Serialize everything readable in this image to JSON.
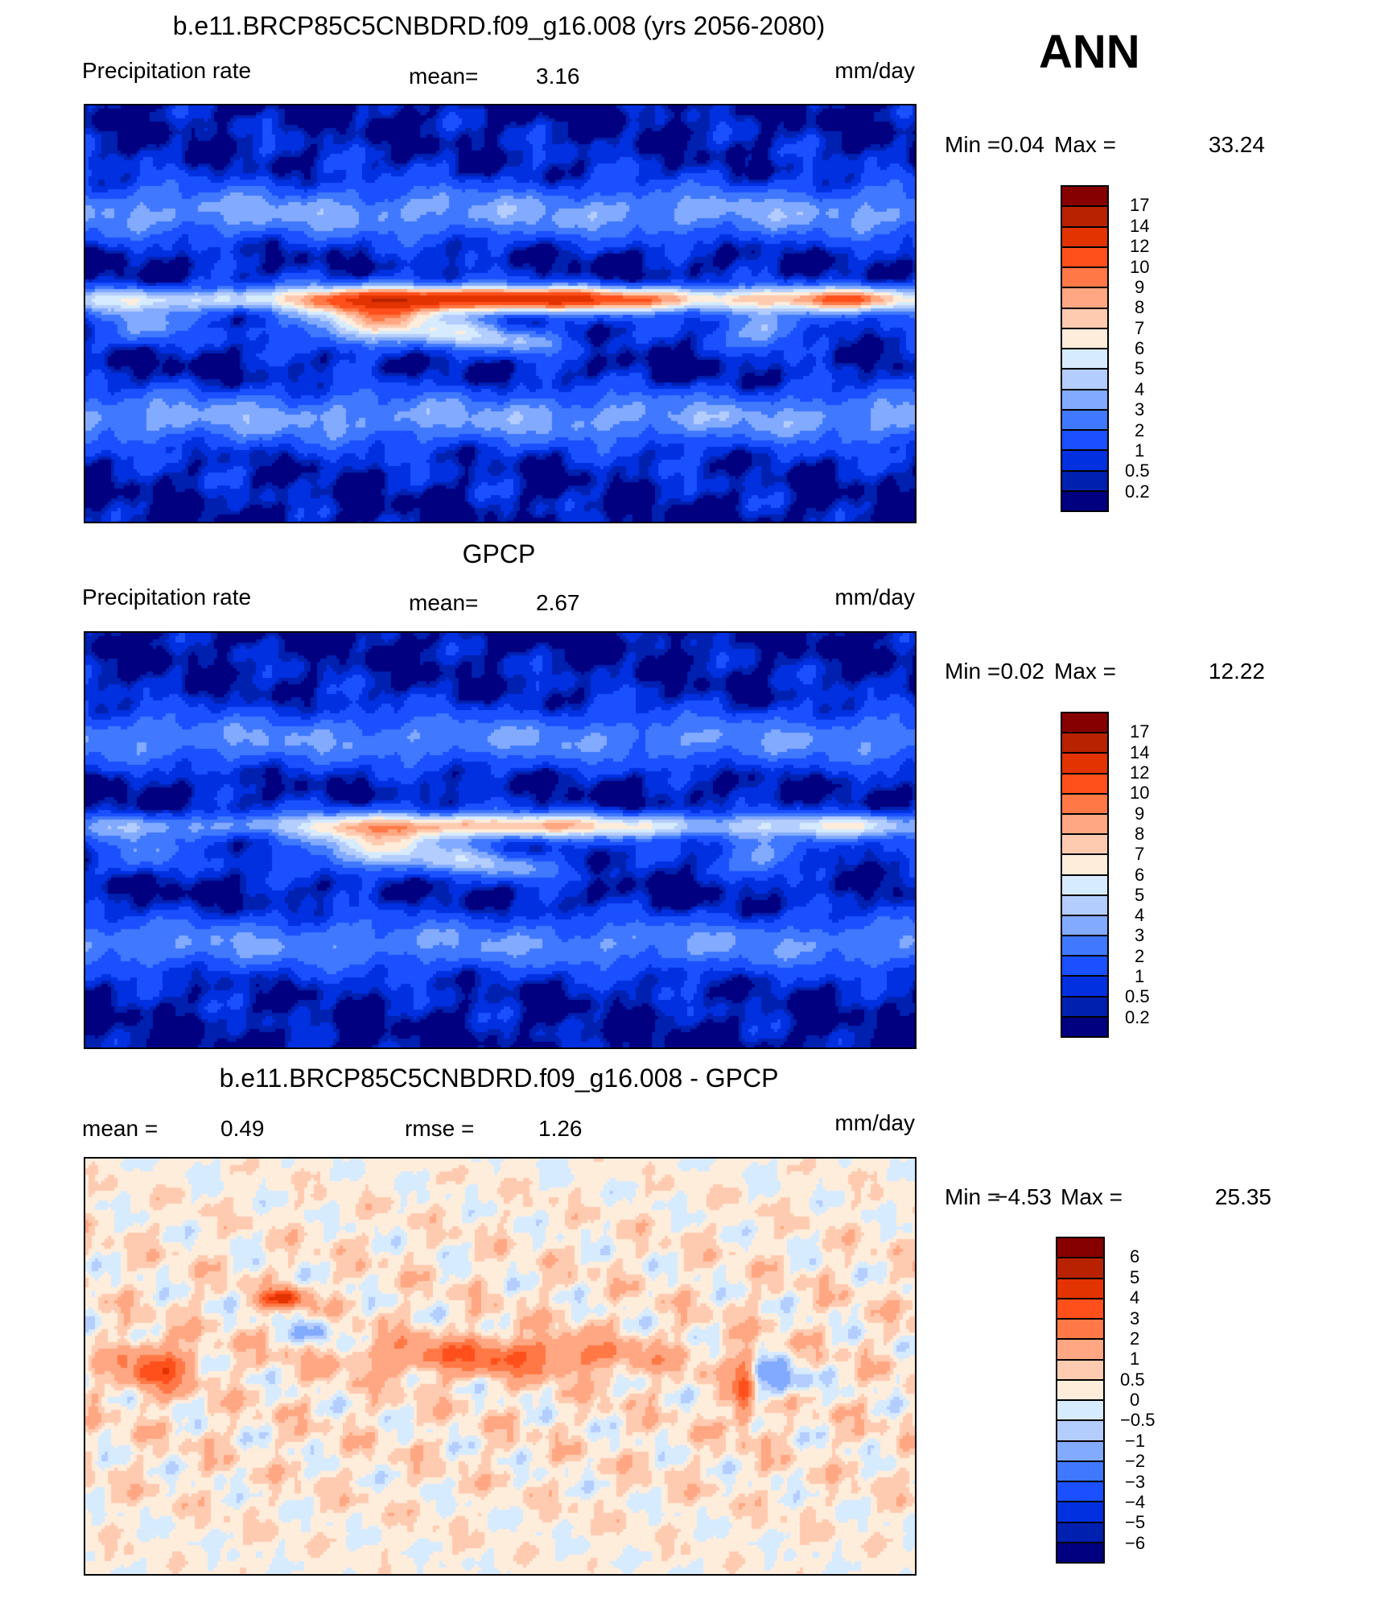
{
  "season": "ANN",
  "colors": [
    "#000080",
    "#0020b0",
    "#0030e0",
    "#1a50ff",
    "#4078ff",
    "#82aaff",
    "#b4cdff",
    "#d7ebff",
    "#ffeddc",
    "#ffcbb0",
    "#ffa782",
    "#ff7846",
    "#ff4f1a",
    "#e23300",
    "#b82200",
    "#870000"
  ],
  "chart_data": [
    {
      "type": "heatmap",
      "title": "b.e11.BRCP85C5CNBDRD.f09_g16.008 (yrs 2056-2080)",
      "left_label": "Precipitation rate",
      "stat1_label": "mean=",
      "stat1_value": "3.16",
      "units": "mm/day",
      "min_label": "Min =",
      "min": "0.04",
      "max_label": "Max =",
      "max": "33.24",
      "levels": [
        "17",
        "14",
        "12",
        "10",
        "9",
        "8",
        "7",
        "6",
        "5",
        "4",
        "3",
        "2",
        "1",
        "0.5",
        "0.2"
      ]
    },
    {
      "type": "heatmap",
      "title": "GPCP",
      "left_label": "Precipitation rate",
      "stat1_label": "mean=",
      "stat1_value": "2.67",
      "units": "mm/day",
      "min_label": "Min =",
      "min": "0.02",
      "max_label": "Max =",
      "max": "12.22",
      "levels": [
        "17",
        "14",
        "12",
        "10",
        "9",
        "8",
        "7",
        "6",
        "5",
        "4",
        "3",
        "2",
        "1",
        "0.5",
        "0.2"
      ]
    },
    {
      "type": "heatmap",
      "title": "b.e11.BRCP85C5CNBDRD.f09_g16.008 - GPCP",
      "stat1_label": "mean =",
      "stat1_value": "0.49",
      "stat2_label": "rmse =",
      "stat2_value": "1.26",
      "units": "mm/day",
      "min_label": "Min =",
      "min": "−4.53",
      "max_label": "Max =",
      "max": "25.35",
      "levels": [
        "6",
        "5",
        "4",
        "3",
        "2",
        "1",
        "0.5",
        "0",
        "−0.5",
        "−1",
        "−2",
        "−3",
        "−4",
        "−5",
        "−6"
      ]
    }
  ]
}
